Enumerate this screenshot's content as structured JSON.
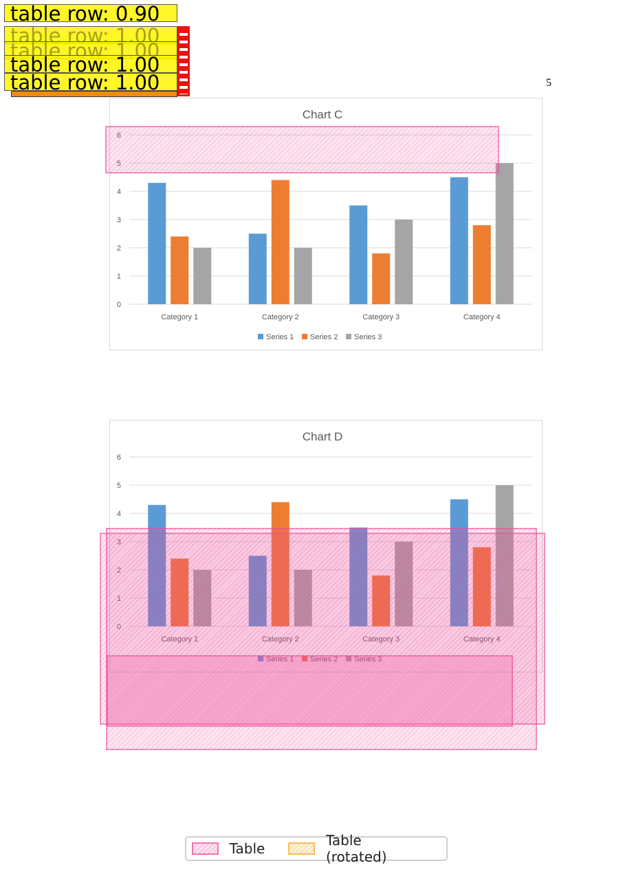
{
  "page_number": "5",
  "chart_data": [
    {
      "type": "bar",
      "title": "Chart C",
      "categories": [
        "Category 1",
        "Category 2",
        "Category 3",
        "Category 4"
      ],
      "series": [
        {
          "name": "Series 1",
          "values": [
            4.3,
            2.5,
            3.5,
            4.5
          ],
          "color": "#5b9bd5"
        },
        {
          "name": "Series 2",
          "values": [
            2.4,
            4.4,
            1.8,
            2.8
          ],
          "color": "#ed7d31"
        },
        {
          "name": "Series 3",
          "values": [
            2,
            2,
            3,
            5
          ],
          "color": "#a5a5a5"
        }
      ],
      "ylim": [
        0,
        6
      ],
      "yticks": [
        "0",
        "1",
        "2",
        "3",
        "4",
        "5",
        "6"
      ],
      "xlabel": "",
      "ylabel": "",
      "grid": true,
      "legend": "bottom"
    },
    {
      "type": "bar",
      "title": "Chart D",
      "categories": [
        "Category 1",
        "Category 2",
        "Category 3",
        "Category 4"
      ],
      "series": [
        {
          "name": "Series 1",
          "values": [
            4.3,
            2.5,
            3.5,
            4.5
          ],
          "color": "#5b9bd5"
        },
        {
          "name": "Series 2",
          "values": [
            2.4,
            4.4,
            1.8,
            2.8
          ],
          "color": "#ed7d31"
        },
        {
          "name": "Series 3",
          "values": [
            2,
            2,
            3,
            5
          ],
          "color": "#a5a5a5"
        }
      ],
      "ylim": [
        0,
        6
      ],
      "yticks": [
        "0",
        "1",
        "2",
        "3",
        "4",
        "5",
        "6"
      ],
      "xlabel": "",
      "ylabel": "",
      "grid": true,
      "legend": "bottom"
    }
  ],
  "row_labels": [
    "table row: 0.90",
    "table row: 1.00",
    "table row: 1.00",
    "table row: 1.00",
    "table row: 1.00"
  ],
  "detection_key": {
    "table_label": "Table",
    "rotated_label": "Table (rotated)",
    "table_color": "#ec4899",
    "rotated_color": "#f59e0b"
  }
}
